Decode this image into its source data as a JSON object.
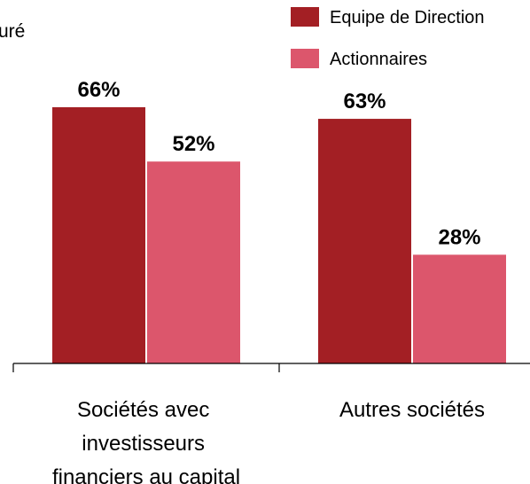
{
  "chart_data": {
    "type": "bar",
    "title": "uré",
    "categories": [
      "Sociétés avec investisseurs financiers au capital",
      "Autres sociétés"
    ],
    "series": [
      {
        "name": "Equipe de Direction",
        "color": "#a31f24",
        "values": [
          66,
          63
        ],
        "value_labels": [
          "66%",
          "63%"
        ]
      },
      {
        "name": "Actionnaires",
        "color": "#dc566c",
        "values": [
          52,
          28
        ],
        "value_labels": [
          "52%",
          "28%"
        ]
      }
    ],
    "legend": "top-right"
  }
}
